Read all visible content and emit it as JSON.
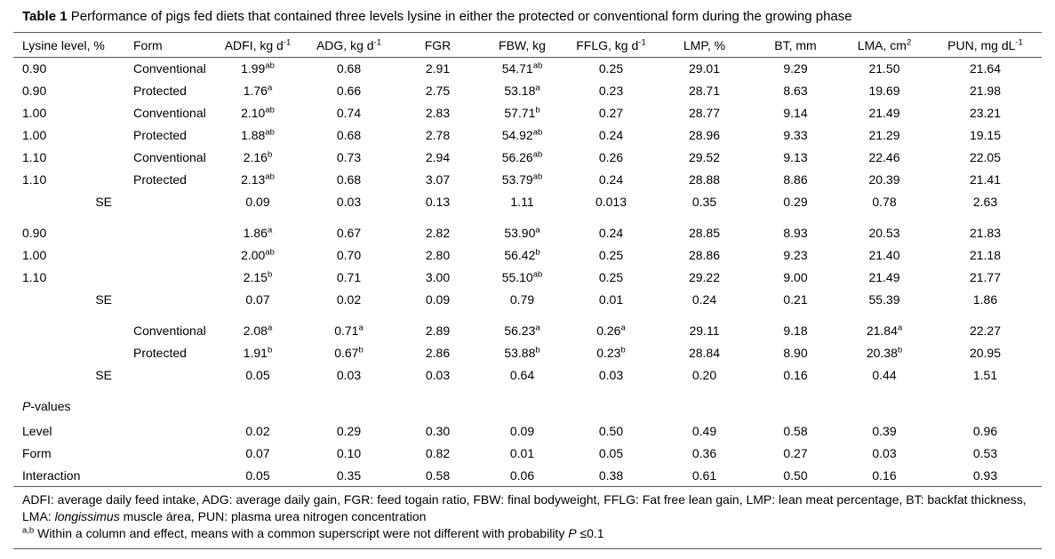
{
  "caption": {
    "label": "Table 1",
    "rest": " Performance of pigs fed diets that contained three levels lysine in either the protected or conventional form during the growing phase"
  },
  "table": {
    "headers": [
      "Lysine level, %",
      "Form",
      "ADFI, kg d^-1",
      "ADG, kg d^-1",
      "FGR",
      "FBW, kg",
      "FFLG, kg d^-1",
      "LMP, %",
      "BT, mm",
      "LMA, cm^2",
      "PUN, mg dL^-1"
    ],
    "sections": [
      {
        "name": "lysine-by-form-means",
        "rows": [
          {
            "c1": "0.90",
            "c2": "Conventional",
            "v": [
              "1.99^ab",
              "0.68",
              "2.91",
              "54.71^ab",
              "0.25",
              "29.01",
              "9.29",
              "21.50",
              "21.64"
            ]
          },
          {
            "c1": "0.90",
            "c2": "Protected",
            "v": [
              "1.76^a",
              "0.66",
              "2.75",
              "53.18^a",
              "0.23",
              "28.71",
              "8.63",
              "19.69",
              "21.98"
            ]
          },
          {
            "c1": "1.00",
            "c2": "Conventional",
            "v": [
              "2.10^ab",
              "0.74",
              "2.83",
              "57.71^b",
              "0.27",
              "28.77",
              "9.14",
              "21.49",
              "23.21"
            ]
          },
          {
            "c1": "1.00",
            "c2": "Protected",
            "v": [
              "1.88^ab",
              "0.68",
              "2.78",
              "54.92^ab",
              "0.24",
              "28.96",
              "9.33",
              "21.29",
              "19.15"
            ]
          },
          {
            "c1": "1.10",
            "c2": "Conventional",
            "v": [
              "2.16^b",
              "0.73",
              "2.94",
              "56.26^ab",
              "0.26",
              "29.52",
              "9.13",
              "22.46",
              "22.05"
            ]
          },
          {
            "c1": "1.10",
            "c2": "Protected",
            "v": [
              "2.13^ab",
              "0.68",
              "3.07",
              "53.79^ab",
              "0.24",
              "28.88",
              "8.86",
              "20.39",
              "21.41"
            ]
          },
          {
            "se": true,
            "c1": "SE",
            "c2": "",
            "v": [
              "0.09",
              "0.03",
              "0.13",
              "1.11",
              "0.013",
              "0.35",
              "0.29",
              "0.78",
              "2.63"
            ]
          }
        ]
      },
      {
        "name": "lysine-level-means",
        "rows": [
          {
            "c1": "0.90",
            "c2": "",
            "v": [
              "1.86^a",
              "0.67",
              "2.82",
              "53.90^a",
              "0.24",
              "28.85",
              "8.93",
              "20.53",
              "21.83"
            ]
          },
          {
            "c1": "1.00",
            "c2": "",
            "v": [
              "2.00^ab",
              "0.70",
              "2.80",
              "56.42^b",
              "0.25",
              "28.86",
              "9.23",
              "21.40",
              "21.18"
            ]
          },
          {
            "c1": "1.10",
            "c2": "",
            "v": [
              "2.15^b",
              "0.71",
              "3.00",
              "55.10^ab",
              "0.25",
              "29.22",
              "9.00",
              "21.49",
              "21.77"
            ]
          },
          {
            "se": true,
            "c1": "SE",
            "c2": "",
            "v": [
              "0.07",
              "0.02",
              "0.09",
              "0.79",
              "0.01",
              "0.24",
              "0.21",
              "55.39",
              "1.86"
            ]
          }
        ]
      },
      {
        "name": "form-means",
        "rows": [
          {
            "c1": "",
            "c2": "Conventional",
            "v": [
              "2.08^a",
              "0.71^a",
              "2.89",
              "56.23^a",
              "0.26^a",
              "29.11",
              "9.18",
              "21.84^a",
              "22.27"
            ]
          },
          {
            "c1": "",
            "c2": "Protected",
            "v": [
              "1.91^b",
              "0.67^b",
              "2.86",
              "53.88^b",
              "0.23^b",
              "28.84",
              "8.90",
              "20.38^b",
              "20.95"
            ]
          },
          {
            "se": true,
            "c1": "SE",
            "c2": "",
            "v": [
              "0.05",
              "0.03",
              "0.03",
              "0.64",
              "0.03",
              "0.20",
              "0.16",
              "0.44",
              "1.51"
            ]
          }
        ]
      },
      {
        "name": "p-values",
        "heading": "P-values",
        "rows": [
          {
            "c1": "Level",
            "c2": "",
            "v": [
              "0.02",
              "0.29",
              "0.30",
              "0.09",
              "0.50",
              "0.49",
              "0.58",
              "0.39",
              "0.96"
            ]
          },
          {
            "c1": "Form",
            "c2": "",
            "v": [
              "0.07",
              "0.10",
              "0.82",
              "0.01",
              "0.05",
              "0.36",
              "0.27",
              "0.03",
              "0.53"
            ]
          },
          {
            "c1": "Interaction",
            "c2": "",
            "v": [
              "0.05",
              "0.35",
              "0.58",
              "0.06",
              "0.38",
              "0.61",
              "0.50",
              "0.16",
              "0.93"
            ]
          }
        ]
      }
    ]
  },
  "footnotes": {
    "abbr": {
      "part1": "ADFI: average daily feed intake, ADG: average daily gain, FGR: feed togain ratio, FBW: final bodyweight, FFLG: Fat free lean gain, LMP: lean meat percentage, BT: backfat thickness, LMA: ",
      "italic": "longissimus",
      "part2": " muscle área, PUN: plasma urea nitrogen concentration"
    },
    "sig": {
      "marker": "a,b",
      "body": " Within a column and effect, means with a common superscript were not different with probability ",
      "p": "P",
      "tail": " ≤0.1"
    }
  }
}
